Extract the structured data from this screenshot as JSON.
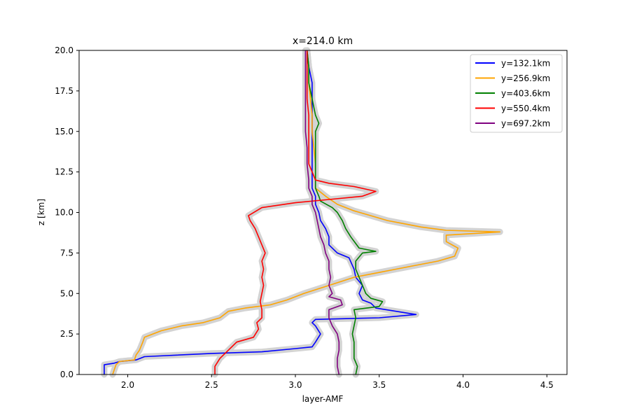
{
  "chart_data": {
    "type": "line",
    "title": "x=214.0 km",
    "xlabel": "layer-AMF",
    "ylabel": "z [km]",
    "xlim": [
      1.71,
      4.62
    ],
    "ylim": [
      0,
      20
    ],
    "xticks": [
      2.0,
      2.5,
      3.0,
      3.5,
      4.0,
      4.5
    ],
    "xtick_labels": [
      "2.0",
      "2.5",
      "3.0",
      "3.5",
      "4.0",
      "4.5"
    ],
    "yticks": [
      0,
      2.5,
      5,
      7.5,
      10,
      12.5,
      15,
      17.5,
      20
    ],
    "ytick_labels": [
      "0.0",
      "2.5",
      "5.0",
      "7.5",
      "10.0",
      "12.5",
      "15.0",
      "17.5",
      "20.0"
    ],
    "grid": false,
    "legend_position": "upper right",
    "uncertainty_band_color": "#d3d3d3",
    "series": [
      {
        "name": "y=132.1km",
        "color": "#0000ff",
        "points": [
          [
            1.86,
            0
          ],
          [
            1.86,
            0.6
          ],
          [
            1.92,
            0.7
          ],
          [
            1.95,
            0.8
          ],
          [
            2.05,
            0.9
          ],
          [
            2.1,
            1.1
          ],
          [
            2.5,
            1.3
          ],
          [
            2.8,
            1.4
          ],
          [
            3.0,
            1.6
          ],
          [
            3.1,
            1.7
          ],
          [
            3.12,
            2.0
          ],
          [
            3.15,
            2.5
          ],
          [
            3.12,
            3.0
          ],
          [
            3.1,
            3.2
          ],
          [
            3.12,
            3.4
          ],
          [
            3.5,
            3.5
          ],
          [
            3.72,
            3.7
          ],
          [
            3.6,
            3.9
          ],
          [
            3.48,
            4.1
          ],
          [
            3.45,
            4.4
          ],
          [
            3.4,
            4.6
          ],
          [
            3.38,
            5.0
          ],
          [
            3.4,
            5.5
          ],
          [
            3.36,
            6.0
          ],
          [
            3.35,
            6.5
          ],
          [
            3.32,
            7.2
          ],
          [
            3.25,
            7.5
          ],
          [
            3.2,
            8.0
          ],
          [
            3.2,
            8.5
          ],
          [
            3.18,
            9.0
          ],
          [
            3.15,
            9.5
          ],
          [
            3.14,
            10.0
          ],
          [
            3.12,
            10.5
          ],
          [
            3.12,
            11.0
          ],
          [
            3.1,
            11.5
          ],
          [
            3.1,
            12.0
          ],
          [
            3.1,
            12.5
          ],
          [
            3.1,
            13.0
          ],
          [
            3.1,
            14.0
          ],
          [
            3.1,
            15.0
          ],
          [
            3.1,
            16.0
          ],
          [
            3.1,
            17.0
          ],
          [
            3.1,
            18.0
          ],
          [
            3.08,
            19.0
          ],
          [
            3.07,
            20.0
          ]
        ]
      },
      {
        "name": "y=256.9km",
        "color": "#ffa500",
        "points": [
          [
            1.91,
            0
          ],
          [
            1.93,
            0.6
          ],
          [
            1.95,
            0.8
          ],
          [
            2.04,
            0.9
          ],
          [
            2.05,
            1.2
          ],
          [
            2.07,
            1.5
          ],
          [
            2.09,
            2.0
          ],
          [
            2.1,
            2.3
          ],
          [
            2.15,
            2.5
          ],
          [
            2.2,
            2.7
          ],
          [
            2.32,
            3.0
          ],
          [
            2.45,
            3.2
          ],
          [
            2.55,
            3.5
          ],
          [
            2.6,
            3.9
          ],
          [
            2.7,
            4.1
          ],
          [
            2.85,
            4.3
          ],
          [
            2.95,
            4.6
          ],
          [
            3.05,
            5.0
          ],
          [
            3.2,
            5.5
          ],
          [
            3.35,
            6.0
          ],
          [
            3.5,
            6.3
          ],
          [
            3.6,
            6.5
          ],
          [
            3.7,
            6.7
          ],
          [
            3.85,
            7.0
          ],
          [
            3.95,
            7.3
          ],
          [
            3.97,
            7.8
          ],
          [
            3.9,
            8.2
          ],
          [
            3.9,
            8.6
          ],
          [
            4.22,
            8.8
          ],
          [
            3.9,
            8.9
          ],
          [
            3.75,
            9.1
          ],
          [
            3.65,
            9.3
          ],
          [
            3.55,
            9.5
          ],
          [
            3.45,
            9.8
          ],
          [
            3.35,
            10.1
          ],
          [
            3.25,
            10.5
          ],
          [
            3.18,
            11.0
          ],
          [
            3.12,
            11.5
          ],
          [
            3.12,
            12.0
          ],
          [
            3.12,
            13.0
          ],
          [
            3.11,
            14.0
          ],
          [
            3.1,
            15.0
          ],
          [
            3.1,
            16.0
          ],
          [
            3.09,
            17.0
          ],
          [
            3.08,
            18.0
          ],
          [
            3.08,
            19.0
          ],
          [
            3.07,
            20.0
          ]
        ]
      },
      {
        "name": "y=403.6km",
        "color": "#008000",
        "points": [
          [
            3.36,
            0
          ],
          [
            3.37,
            0.5
          ],
          [
            3.35,
            1.0
          ],
          [
            3.35,
            1.5
          ],
          [
            3.35,
            2.0
          ],
          [
            3.34,
            2.5
          ],
          [
            3.35,
            3.0
          ],
          [
            3.36,
            3.5
          ],
          [
            3.35,
            4.0
          ],
          [
            3.5,
            4.2
          ],
          [
            3.52,
            4.5
          ],
          [
            3.45,
            4.7
          ],
          [
            3.42,
            5.0
          ],
          [
            3.4,
            5.5
          ],
          [
            3.38,
            6.0
          ],
          [
            3.36,
            6.5
          ],
          [
            3.36,
            7.0
          ],
          [
            3.4,
            7.5
          ],
          [
            3.48,
            7.6
          ],
          [
            3.38,
            7.8
          ],
          [
            3.33,
            8.5
          ],
          [
            3.3,
            9.0
          ],
          [
            3.28,
            9.5
          ],
          [
            3.25,
            10.0
          ],
          [
            3.22,
            10.3
          ],
          [
            3.15,
            10.7
          ],
          [
            3.14,
            11.0
          ],
          [
            3.12,
            11.5
          ],
          [
            3.12,
            12.0
          ],
          [
            3.12,
            13.0
          ],
          [
            3.12,
            14.0
          ],
          [
            3.12,
            15.0
          ],
          [
            3.14,
            15.5
          ],
          [
            3.12,
            16.0
          ],
          [
            3.1,
            17.0
          ],
          [
            3.08,
            18.0
          ],
          [
            3.08,
            19.0
          ],
          [
            3.07,
            20.0
          ]
        ]
      },
      {
        "name": "y=550.4km",
        "color": "#ff0000",
        "points": [
          [
            2.52,
            0
          ],
          [
            2.52,
            0.5
          ],
          [
            2.55,
            1.0
          ],
          [
            2.6,
            1.5
          ],
          [
            2.65,
            2.0
          ],
          [
            2.75,
            2.3
          ],
          [
            2.78,
            2.8
          ],
          [
            2.77,
            3.2
          ],
          [
            2.8,
            3.5
          ],
          [
            2.8,
            4.0
          ],
          [
            2.79,
            4.5
          ],
          [
            2.8,
            5.0
          ],
          [
            2.81,
            5.5
          ],
          [
            2.8,
            6.0
          ],
          [
            2.81,
            6.5
          ],
          [
            2.8,
            7.0
          ],
          [
            2.82,
            7.5
          ],
          [
            2.8,
            8.0
          ],
          [
            2.78,
            8.5
          ],
          [
            2.76,
            9.0
          ],
          [
            2.73,
            9.5
          ],
          [
            2.72,
            9.8
          ],
          [
            2.8,
            10.3
          ],
          [
            3.0,
            10.6
          ],
          [
            3.2,
            10.8
          ],
          [
            3.4,
            11.0
          ],
          [
            3.48,
            11.3
          ],
          [
            3.35,
            11.6
          ],
          [
            3.2,
            11.8
          ],
          [
            3.12,
            12.0
          ],
          [
            3.1,
            12.5
          ],
          [
            3.08,
            13.0
          ],
          [
            3.08,
            14.0
          ],
          [
            3.08,
            15.0
          ],
          [
            3.08,
            16.0
          ],
          [
            3.07,
            17.0
          ],
          [
            3.07,
            18.0
          ],
          [
            3.07,
            19.0
          ],
          [
            3.07,
            20.0
          ]
        ]
      },
      {
        "name": "y=697.2km",
        "color": "#800080",
        "points": [
          [
            3.26,
            0
          ],
          [
            3.25,
            0.5
          ],
          [
            3.25,
            1.0
          ],
          [
            3.26,
            1.5
          ],
          [
            3.26,
            2.0
          ],
          [
            3.25,
            2.5
          ],
          [
            3.22,
            3.0
          ],
          [
            3.2,
            3.5
          ],
          [
            3.2,
            4.0
          ],
          [
            3.28,
            4.3
          ],
          [
            3.27,
            4.6
          ],
          [
            3.2,
            4.8
          ],
          [
            3.22,
            5.0
          ],
          [
            3.2,
            5.5
          ],
          [
            3.21,
            6.0
          ],
          [
            3.2,
            6.5
          ],
          [
            3.2,
            7.0
          ],
          [
            3.18,
            7.5
          ],
          [
            3.17,
            8.0
          ],
          [
            3.15,
            8.5
          ],
          [
            3.14,
            9.0
          ],
          [
            3.13,
            9.5
          ],
          [
            3.12,
            10.0
          ],
          [
            3.1,
            10.5
          ],
          [
            3.1,
            11.0
          ],
          [
            3.08,
            11.5
          ],
          [
            3.08,
            12.0
          ],
          [
            3.07,
            13.0
          ],
          [
            3.07,
            14.0
          ],
          [
            3.06,
            15.0
          ],
          [
            3.06,
            16.0
          ],
          [
            3.06,
            17.0
          ],
          [
            3.06,
            18.0
          ],
          [
            3.06,
            19.0
          ],
          [
            3.06,
            20.0
          ]
        ]
      }
    ]
  }
}
